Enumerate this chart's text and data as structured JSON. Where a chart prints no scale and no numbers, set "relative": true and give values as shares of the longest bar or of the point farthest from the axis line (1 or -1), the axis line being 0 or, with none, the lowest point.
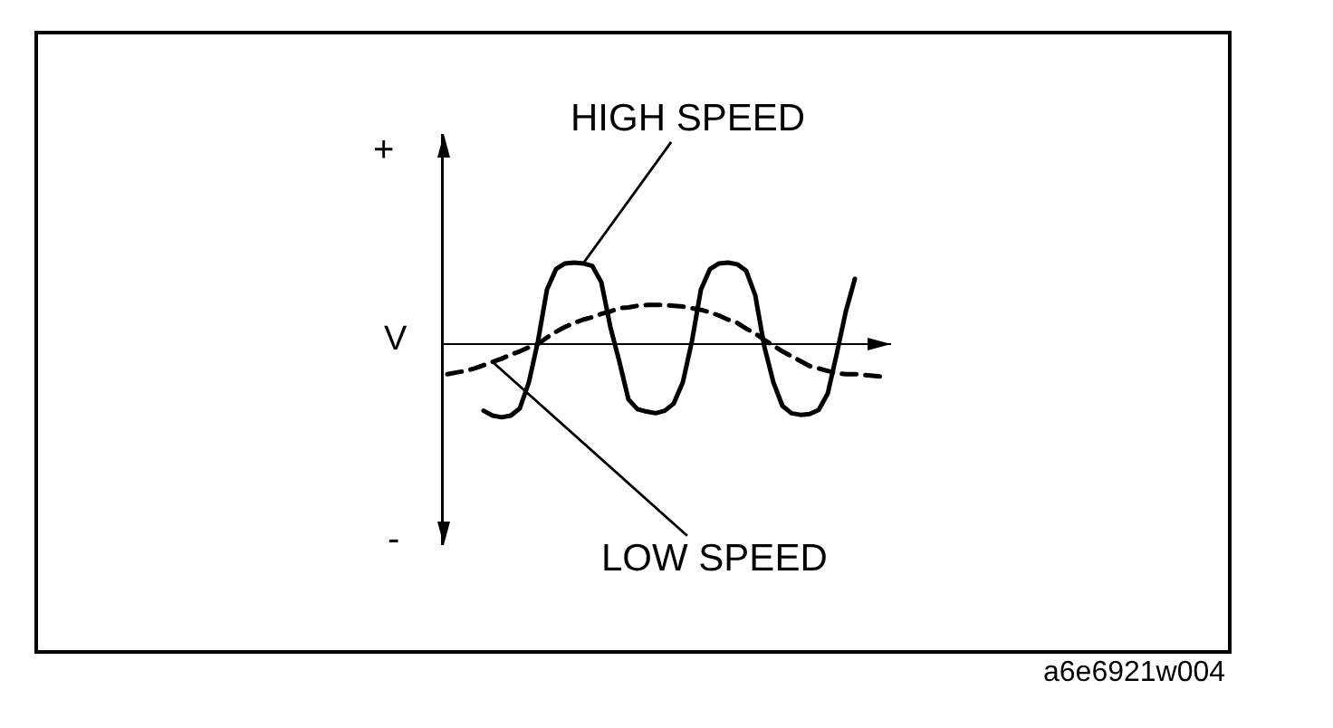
{
  "chart_data": {
    "type": "line",
    "relative": true,
    "ylabel": "V",
    "annotations": [
      "+",
      "-",
      "a6e6921w004"
    ],
    "categories": [
      null,
      null,
      null,
      null,
      null,
      null,
      null,
      null,
      null,
      null,
      null,
      null,
      null,
      null,
      null,
      null,
      null,
      null,
      null,
      null,
      null,
      null,
      null,
      null,
      null,
      null,
      null,
      null,
      null,
      null,
      null,
      null,
      null,
      null,
      null,
      null,
      null,
      null,
      null,
      null,
      null,
      null,
      null,
      null,
      null,
      null,
      null,
      null,
      null
    ],
    "series": [
      {
        "name": "HIGH SPEED",
        "color": "#000000",
        "line_style": "solid",
        "values": [
          null,
          null,
          null,
          null,
          -0.82,
          -0.88,
          -0.9,
          -0.88,
          -0.79,
          -0.47,
          0.03,
          0.67,
          0.92,
          0.99,
          1,
          0.99,
          0.96,
          0.76,
          0.21,
          -0.22,
          -0.68,
          -0.8,
          -0.83,
          -0.85,
          -0.82,
          -0.73,
          -0.47,
          0.03,
          0.67,
          0.92,
          0.99,
          1,
          0.98,
          0.9,
          0.6,
          -0.03,
          -0.47,
          -0.76,
          -0.85,
          -0.87,
          -0.86,
          -0.81,
          -0.61,
          -0.12,
          0.4,
          0.8,
          null,
          null,
          null
        ]
      },
      {
        "name": "LOW SPEED",
        "color": "#000000",
        "line_style": "dashed",
        "values": [
          -0.37,
          -0.35,
          -0.33,
          -0.3,
          -0.26,
          -0.22,
          -0.18,
          -0.13,
          -0.09,
          -0.04,
          0,
          0.08,
          0.15,
          0.21,
          0.26,
          0.3,
          0.33,
          0.37,
          0.4,
          0.44,
          0.45,
          0.47,
          0.48,
          0.48,
          0.48,
          0.47,
          0.46,
          0.44,
          0.42,
          0.39,
          0.35,
          0.3,
          0.26,
          0.19,
          0.13,
          0.05,
          -0.02,
          -0.09,
          -0.15,
          -0.21,
          -0.27,
          -0.3,
          -0.33,
          -0.36,
          -0.37,
          -0.37,
          -0.38,
          -0.39,
          -0.4
        ]
      }
    ],
    "marker": "none",
    "legend": false
  }
}
